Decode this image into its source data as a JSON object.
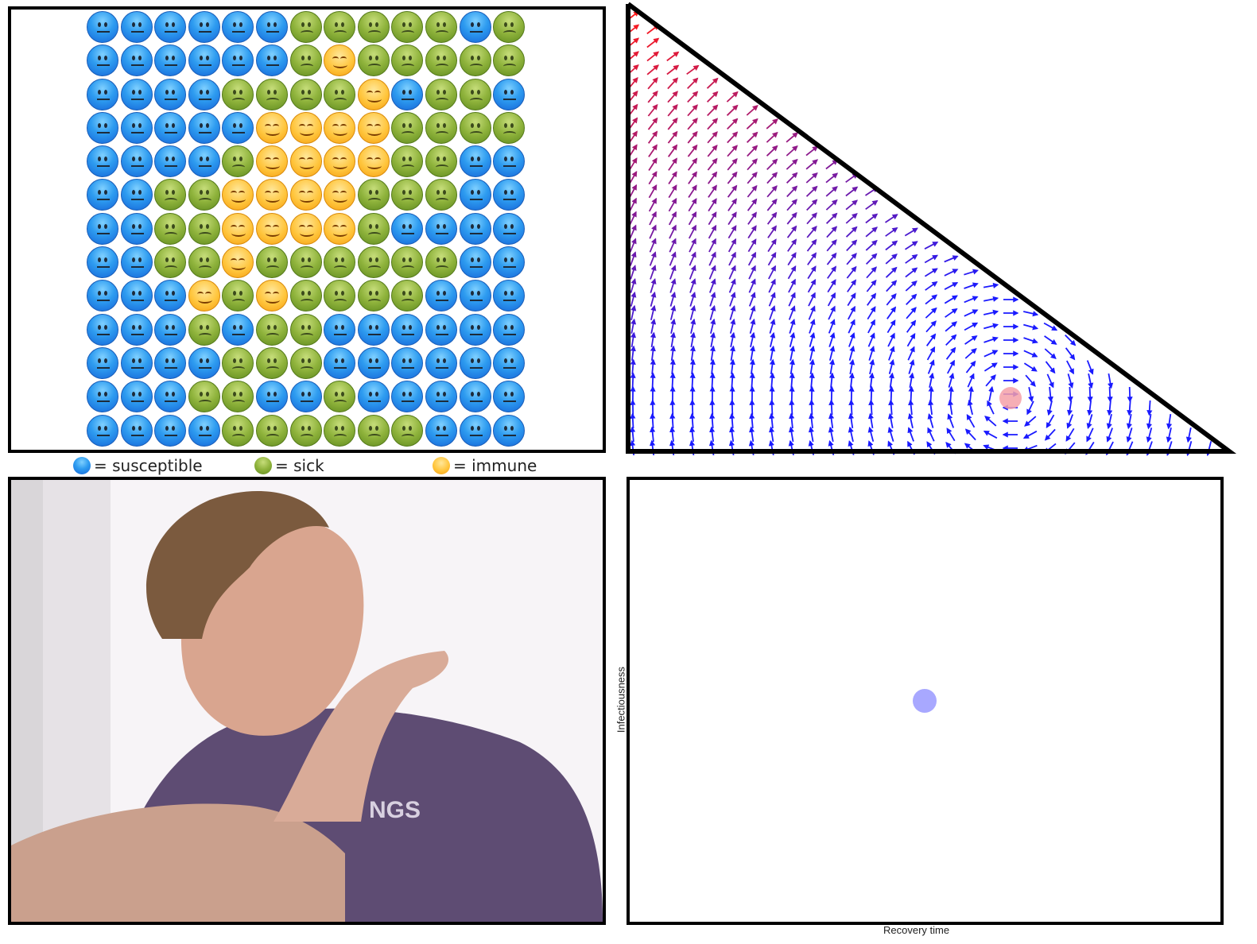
{
  "grid": {
    "rows": [
      "SSSSSSKKKKKSK",
      "SSSSSSKIKKKKK",
      "SSSSKKKKISKKS",
      "SSSSSIIIIKKKK",
      "SSSSKIIIIKKSS",
      "SSKKIIIIKKKSS",
      "SSKKIIIIKSSSS",
      "SSKKIKKKKKKSS",
      "SSSIKIKKKKSSS",
      "SSSKSKKSSSSSS",
      "SSSSKKKSSSSSS",
      "SSSKKSSKSSSSS",
      "SSSSKKKKKKSSS"
    ],
    "legend": {
      "susceptible": "= susceptible",
      "sick": "= sick",
      "immune": "= immune"
    },
    "colors": {
      "susceptible": "#2e9cf0",
      "sick": "#8fb33c",
      "immune": "#ffc53c"
    }
  },
  "phase_portrait": {
    "state_marker_color": "#f4a0a8",
    "arrow_color_top": "#ff1a1a",
    "arrow_color_bottom": "#1a1aff"
  },
  "video": {
    "shirt_text": "NGS"
  },
  "parameters": {
    "xlabel": "Recovery time",
    "ylabel": "Infectiousness",
    "point_color": "#a8a8ff"
  }
}
